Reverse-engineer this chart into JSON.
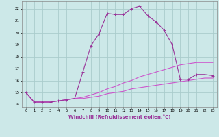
{
  "xlabel": "Windchill (Refroidissement éolien,°C)",
  "bg_color": "#cce8e8",
  "grid_color": "#aacccc",
  "line_color1": "#993399",
  "line_color2": "#cc55cc",
  "xlim": [
    -0.5,
    23.5
  ],
  "ylim": [
    13.8,
    22.6
  ],
  "yticks": [
    14,
    15,
    16,
    17,
    18,
    19,
    20,
    21,
    22
  ],
  "xticks": [
    0,
    1,
    2,
    3,
    4,
    5,
    6,
    7,
    8,
    9,
    10,
    11,
    12,
    13,
    14,
    15,
    16,
    17,
    18,
    19,
    20,
    21,
    22,
    23
  ],
  "series1_x": [
    0,
    1,
    2,
    3,
    4,
    5,
    6,
    7,
    8,
    9,
    10,
    11,
    12,
    13,
    14,
    15,
    16,
    17,
    18,
    19,
    20,
    21,
    22,
    23
  ],
  "series1_y": [
    15.0,
    14.2,
    14.2,
    14.2,
    14.3,
    14.4,
    14.5,
    16.7,
    18.9,
    19.9,
    21.6,
    21.5,
    21.5,
    22.0,
    22.2,
    21.4,
    20.9,
    20.2,
    19.0,
    16.1,
    16.1,
    16.5,
    16.5,
    16.4
  ],
  "series2_x": [
    0,
    1,
    2,
    3,
    4,
    5,
    6,
    7,
    8,
    9,
    10,
    11,
    12,
    13,
    14,
    15,
    16,
    17,
    18,
    19,
    20,
    21,
    22,
    23
  ],
  "series2_y": [
    15.0,
    14.2,
    14.2,
    14.2,
    14.3,
    14.4,
    14.5,
    14.6,
    14.8,
    15.0,
    15.3,
    15.5,
    15.8,
    16.0,
    16.3,
    16.5,
    16.7,
    16.9,
    17.1,
    17.3,
    17.4,
    17.5,
    17.5,
    17.5
  ],
  "series3_x": [
    0,
    1,
    2,
    3,
    4,
    5,
    6,
    7,
    8,
    9,
    10,
    11,
    12,
    13,
    14,
    15,
    16,
    17,
    18,
    19,
    20,
    21,
    22,
    23
  ],
  "series3_y": [
    15.0,
    14.2,
    14.2,
    14.2,
    14.3,
    14.4,
    14.5,
    14.5,
    14.6,
    14.7,
    14.9,
    15.0,
    15.1,
    15.3,
    15.4,
    15.5,
    15.6,
    15.7,
    15.8,
    15.9,
    16.0,
    16.1,
    16.2,
    16.2
  ]
}
